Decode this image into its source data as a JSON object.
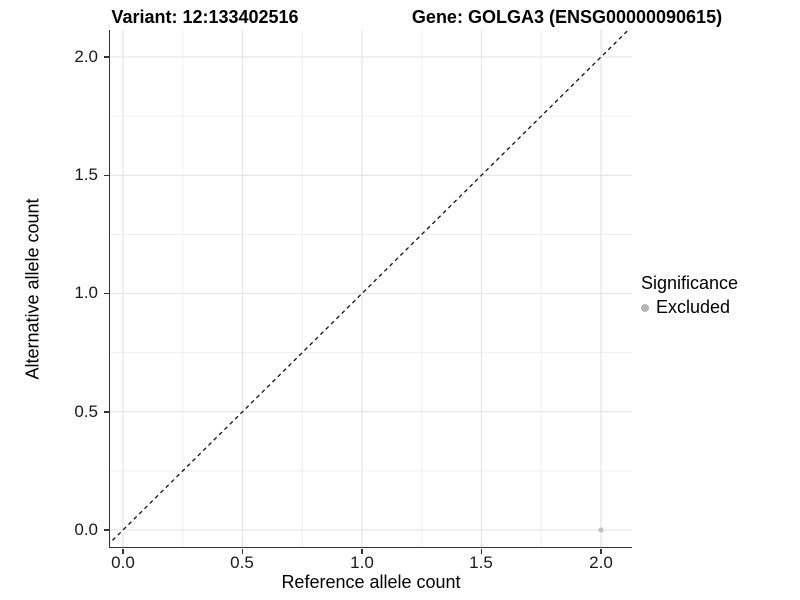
{
  "chart_data": {
    "type": "scatter",
    "titles": {
      "left": "Variant: 12:133402516",
      "right": "Gene: GOLGA3 (ENSG00000090615)"
    },
    "xlabel": "Reference allele count",
    "ylabel": "Alternative allele count",
    "xlim": [
      -0.06,
      2.13
    ],
    "ylim": [
      -0.07,
      2.12
    ],
    "x_ticks": [
      0.0,
      0.5,
      1.0,
      1.5,
      2.0
    ],
    "y_ticks": [
      0.0,
      0.5,
      1.0,
      1.5,
      2.0
    ],
    "x_tick_labels": [
      "0.0",
      "0.5",
      "1.0",
      "1.5",
      "2.0"
    ],
    "y_tick_labels_top_to_bottom": [
      "2.0",
      "1.5",
      "1.0",
      "0.5",
      "0.0"
    ],
    "grid": "major+minor",
    "legend_position": "right",
    "series": [
      {
        "name": "Excluded",
        "color": "#c3c3c3",
        "points": [
          {
            "x": 2.0,
            "y": 0.0
          }
        ]
      }
    ],
    "reference_line": {
      "slope": 1,
      "intercept": 0,
      "style": "dashed",
      "color": "#111111"
    }
  },
  "legend": {
    "title": "Significance",
    "items": [
      {
        "label": "Excluded",
        "color": "#b5b5b5",
        "marker": "circle-icon"
      }
    ]
  },
  "colors": {
    "axis_line": "#333333",
    "grid_major": "#e6e6e6",
    "grid_minor": "#efefef",
    "tick_text": "#1a1a1a",
    "background": "#ffffff"
  }
}
